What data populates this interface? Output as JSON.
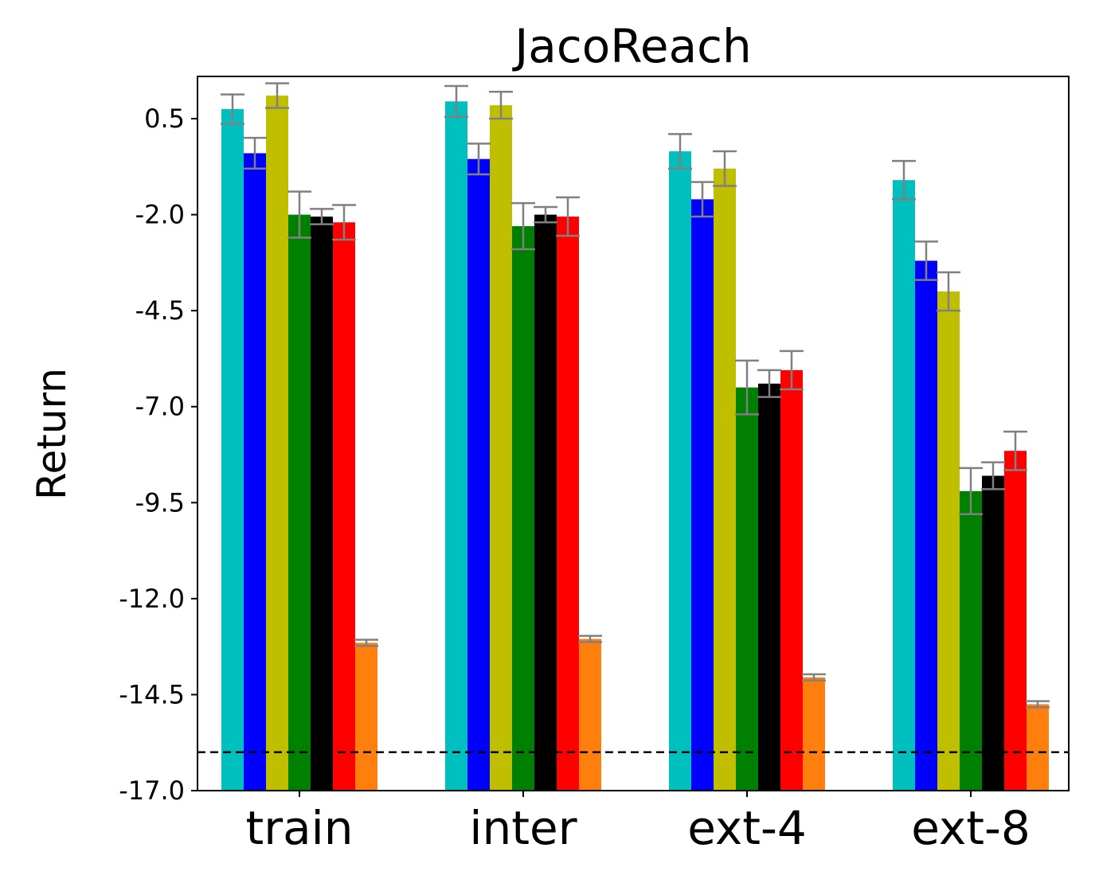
{
  "chart_data": {
    "type": "bar",
    "title": "JacoReach",
    "xlabel": "",
    "ylabel": "Return",
    "categories": [
      "train",
      "inter",
      "ext-4",
      "ext-8"
    ],
    "yticks": [
      "0.5",
      "-2.0",
      "-4.5",
      "-7.0",
      "-9.5",
      "-12.0",
      "-14.5",
      "-17.0"
    ],
    "ylim": [
      -17.0,
      1.6
    ],
    "baseline": -16.0,
    "grid": false,
    "series": [
      {
        "color": "#00bfbf",
        "values": [
          0.75,
          0.95,
          -0.35,
          -1.1
        ],
        "errors": [
          0.38,
          0.4,
          0.45,
          0.5
        ]
      },
      {
        "color": "#0000ff",
        "values": [
          -0.4,
          -0.55,
          -1.6,
          -3.2
        ],
        "errors": [
          0.4,
          0.4,
          0.45,
          0.5
        ]
      },
      {
        "color": "#bfbf00",
        "values": [
          1.1,
          0.85,
          -0.8,
          -4.0
        ],
        "errors": [
          0.32,
          0.35,
          0.45,
          0.5
        ]
      },
      {
        "color": "#008000",
        "values": [
          -2.0,
          -2.3,
          -6.5,
          -9.2
        ],
        "errors": [
          0.6,
          0.6,
          0.7,
          0.6
        ]
      },
      {
        "color": "#000000",
        "values": [
          -2.05,
          -2.0,
          -6.4,
          -8.8
        ],
        "errors": [
          0.2,
          0.2,
          0.35,
          0.35
        ]
      },
      {
        "color": "#ff0000",
        "values": [
          -2.2,
          -2.05,
          -6.05,
          -8.15
        ],
        "errors": [
          0.45,
          0.5,
          0.5,
          0.5
        ]
      },
      {
        "color": "#ff7f0e",
        "values": [
          -13.15,
          -13.05,
          -14.05,
          -14.75
        ],
        "errors": [
          0.08,
          0.08,
          0.08,
          0.08
        ]
      }
    ]
  }
}
